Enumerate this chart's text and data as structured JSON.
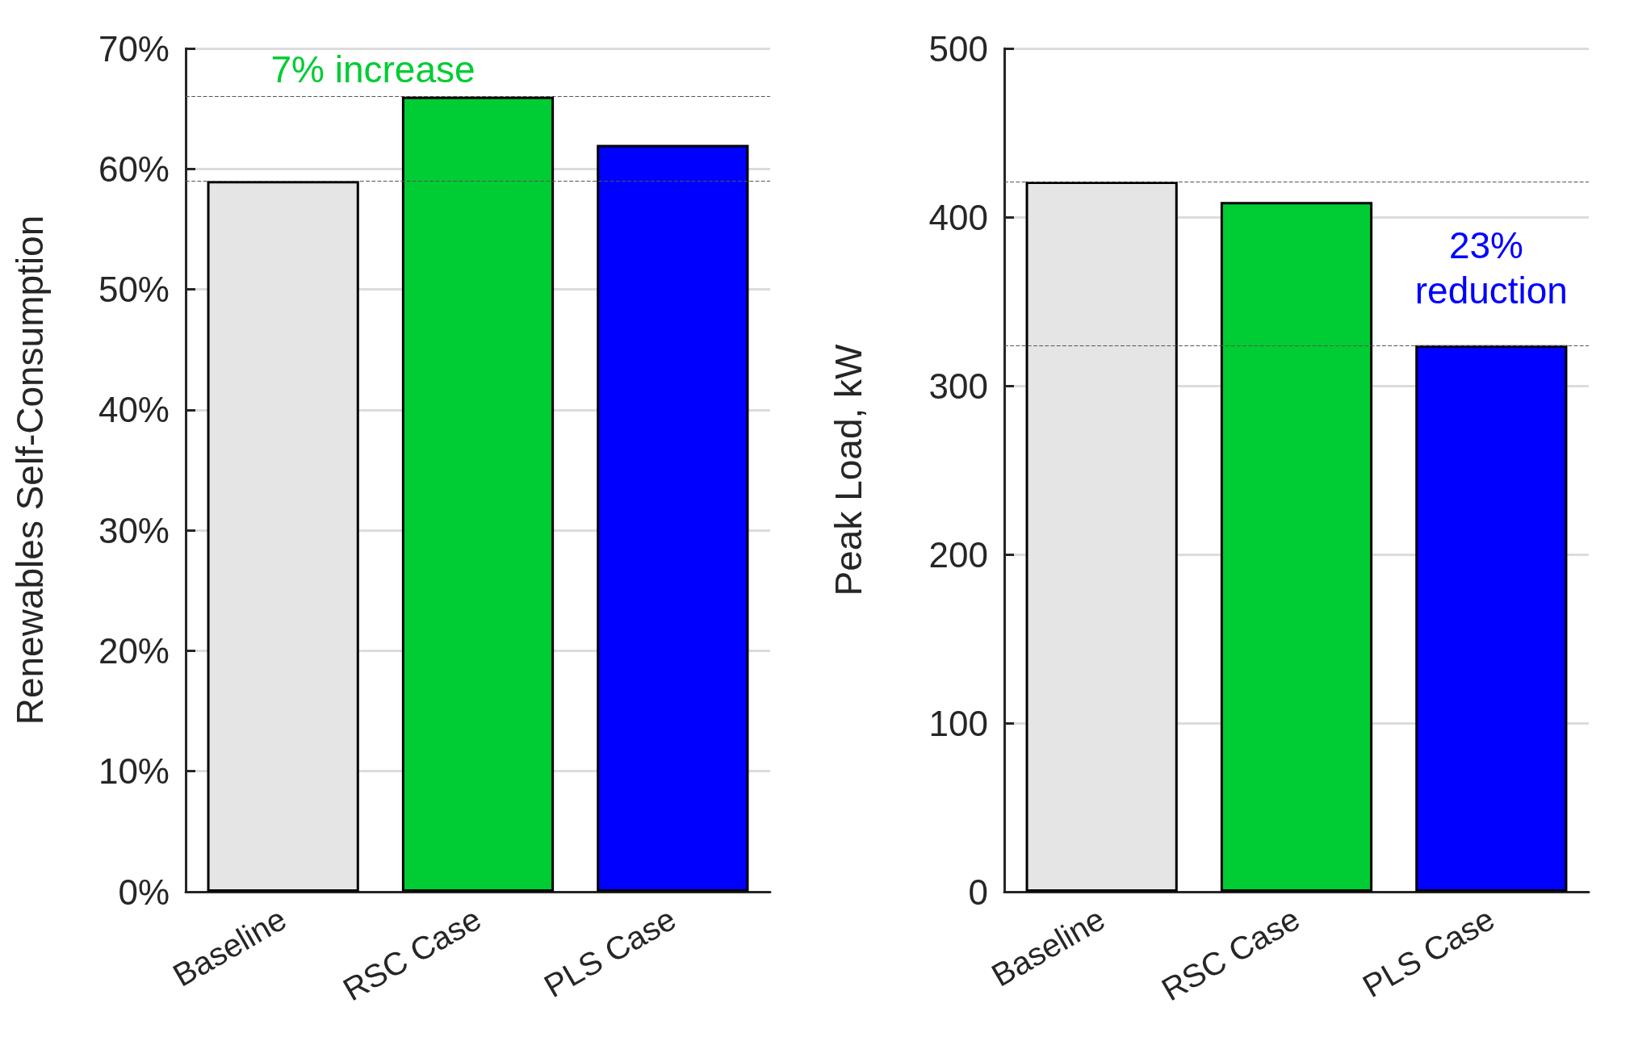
{
  "chart_data": [
    {
      "type": "bar",
      "ylabel": "Renewables Self-Consumption",
      "categories": [
        "Baseline",
        "RSC Case",
        "PLS Case"
      ],
      "values": [
        59,
        66,
        62
      ],
      "colors": [
        "#e5e5e5",
        "#00cc33",
        "#0000ff"
      ],
      "ylim": [
        0,
        70
      ],
      "yticks": [
        {
          "value": 0,
          "label": "0%"
        },
        {
          "value": 10,
          "label": "10%"
        },
        {
          "value": 20,
          "label": "20%"
        },
        {
          "value": 30,
          "label": "30%"
        },
        {
          "value": 40,
          "label": "40%"
        },
        {
          "value": 50,
          "label": "50%"
        },
        {
          "value": 60,
          "label": "60%"
        },
        {
          "value": 70,
          "label": "70%"
        }
      ],
      "grid": "y",
      "ref_lines": [
        {
          "axis": "y",
          "value": 66,
          "line_style": "dashed",
          "color": "#555555"
        },
        {
          "axis": "y",
          "value": 59,
          "line_style": "dashed",
          "color": "#555555"
        }
      ],
      "annotations": [
        "7% increase"
      ]
    },
    {
      "type": "bar",
      "ylabel": "Peak Load, kW",
      "categories": [
        "Baseline",
        "RSC Case",
        "PLS Case"
      ],
      "values": [
        421,
        409,
        324
      ],
      "colors": [
        "#e5e5e5",
        "#00cc33",
        "#0000ff"
      ],
      "ylim": [
        0,
        500
      ],
      "yticks": [
        0,
        100,
        200,
        300,
        400,
        500
      ],
      "grid": "y",
      "ref_lines": [
        {
          "axis": "y",
          "value": 421,
          "line_style": "dashed",
          "color": "#555555"
        },
        {
          "axis": "y",
          "value": 324,
          "line_style": "dashed",
          "color": "#555555"
        }
      ],
      "annotations": [
        "23% reduction"
      ]
    }
  ]
}
